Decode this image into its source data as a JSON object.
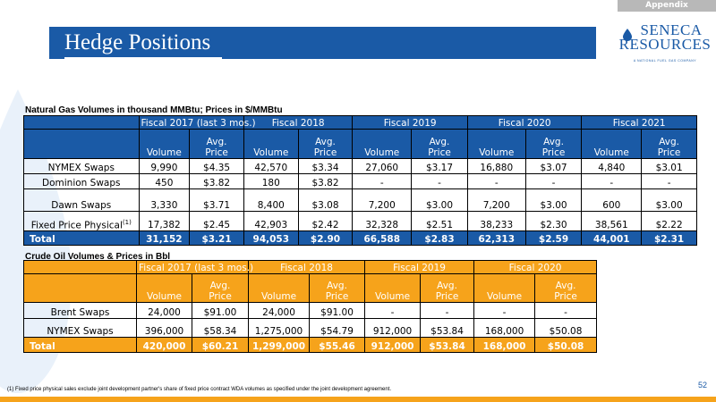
{
  "header": {
    "appendix_label": "Appendix",
    "title": "Hedge Positions",
    "logo_name_line1": "SENECA",
    "logo_name_line2": "RESOURCES",
    "logo_tagline": "A NATIONAL FUEL GAS COMPANY"
  },
  "colors": {
    "brand_blue": "#1a5aa6",
    "accent_orange": "#f6a31b"
  },
  "gas": {
    "section_title": "Natural Gas Volumes in thousand MMBtu; Prices in $/MMBtu",
    "periods": [
      "Fiscal 2017 (last 3 mos.)",
      "Fiscal 2018",
      "Fiscal 2019",
      "Fiscal 2020",
      "Fiscal 2021"
    ],
    "sub_headers": {
      "volume": "Volume",
      "avg_line1": "Avg.",
      "avg_line2": "Price"
    },
    "rows": [
      {
        "label": "NYMEX Swaps",
        "cells": [
          "9,990",
          "$4.35",
          "42,570",
          "$3.34",
          "27,060",
          "$3.17",
          "16,880",
          "$3.07",
          "4,840",
          "$3.01"
        ]
      },
      {
        "label": "Dominion Swaps",
        "cells": [
          "450",
          "$3.82",
          "180",
          "$3.82",
          "-",
          "-",
          "-",
          "-",
          "-",
          "-"
        ]
      },
      {
        "label": "Dawn Swaps",
        "cells": [
          "3,330",
          "$3.71",
          "8,400",
          "$3.08",
          "7,200",
          "$3.00",
          "7,200",
          "$3.00",
          "600",
          "$3.00"
        ]
      },
      {
        "label": "Fixed Price Physical",
        "footnote_mark": "(1)",
        "cells": [
          "17,382",
          "$2.45",
          "42,903",
          "$2.42",
          "32,328",
          "$2.51",
          "38,233",
          "$2.30",
          "38,561",
          "$2.22"
        ]
      }
    ],
    "total": {
      "label": "Total",
      "cells": [
        "31,152",
        "$3.21",
        "94,053",
        "$2.90",
        "66,588",
        "$2.83",
        "62,313",
        "$2.59",
        "44,001",
        "$2.31"
      ]
    }
  },
  "oil": {
    "section_title": "Crude Oil Volumes & Prices in Bbl",
    "periods": [
      "Fiscal 2017 (last 3 mos.)",
      "Fiscal 2018",
      "Fiscal 2019",
      "Fiscal 2020"
    ],
    "sub_headers": {
      "volume": "Volume",
      "avg_line1": "Avg.",
      "avg_line2": "Price"
    },
    "rows": [
      {
        "label": "Brent Swaps",
        "cells": [
          "24,000",
          "$91.00",
          "24,000",
          "$91.00",
          "-",
          "-",
          "-",
          "-"
        ]
      },
      {
        "label": "NYMEX Swaps",
        "cells": [
          "396,000",
          "$58.34",
          "1,275,000",
          "$54.79",
          "912,000",
          "$53.84",
          "168,000",
          "$50.08"
        ]
      }
    ],
    "total": {
      "label": "Total",
      "cells": [
        "420,000",
        "$60.21",
        "1,299,000",
        "$55.46",
        "912,000",
        "$53.84",
        "168,000",
        "$50.08"
      ]
    }
  },
  "footnote": "(1)   Fixed price physical sales exclude joint development partner's share of fixed price contract WDA volumes as specified under the joint development agreement.",
  "page_number": "52"
}
